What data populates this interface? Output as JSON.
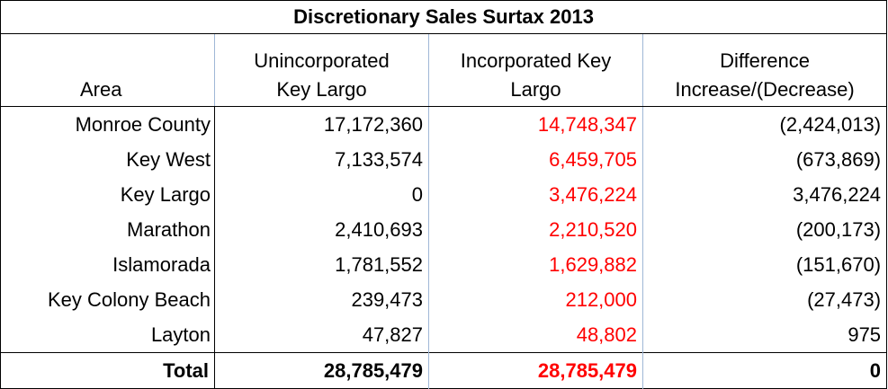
{
  "title": "Discretionary Sales Surtax 2013",
  "headers": {
    "area": "Area",
    "unincorporated_line1": "Unincorporated",
    "unincorporated_line2": "Key Largo",
    "incorporated_line1": "Incorporated Key",
    "incorporated_line2": "Largo",
    "difference_line1": "Difference",
    "difference_line2": "Increase/(Decrease)"
  },
  "rows": [
    {
      "area": "Monroe County",
      "unincorporated": "17,172,360",
      "incorporated": "14,748,347",
      "difference": "(2,424,013)"
    },
    {
      "area": "Key West",
      "unincorporated": "7,133,574",
      "incorporated": "6,459,705",
      "difference": "(673,869)"
    },
    {
      "area": "Key Largo",
      "unincorporated": "0",
      "incorporated": "3,476,224",
      "difference": "3,476,224"
    },
    {
      "area": "Marathon",
      "unincorporated": "2,410,693",
      "incorporated": "2,210,520",
      "difference": "(200,173)"
    },
    {
      "area": "Islamorada",
      "unincorporated": "1,781,552",
      "incorporated": "1,629,882",
      "difference": "(151,670)"
    },
    {
      "area": "Key Colony Beach",
      "unincorporated": "239,473",
      "incorporated": "212,000",
      "difference": "(27,473)"
    },
    {
      "area": "Layton",
      "unincorporated": "47,827",
      "incorporated": "48,802",
      "difference": "975"
    }
  ],
  "total": {
    "area": "Total",
    "unincorporated": "28,785,479",
    "incorporated": "28,785,479",
    "difference": "0"
  },
  "colors": {
    "incorporated_text": "#ff0000",
    "grid": "#9fb7d6"
  }
}
